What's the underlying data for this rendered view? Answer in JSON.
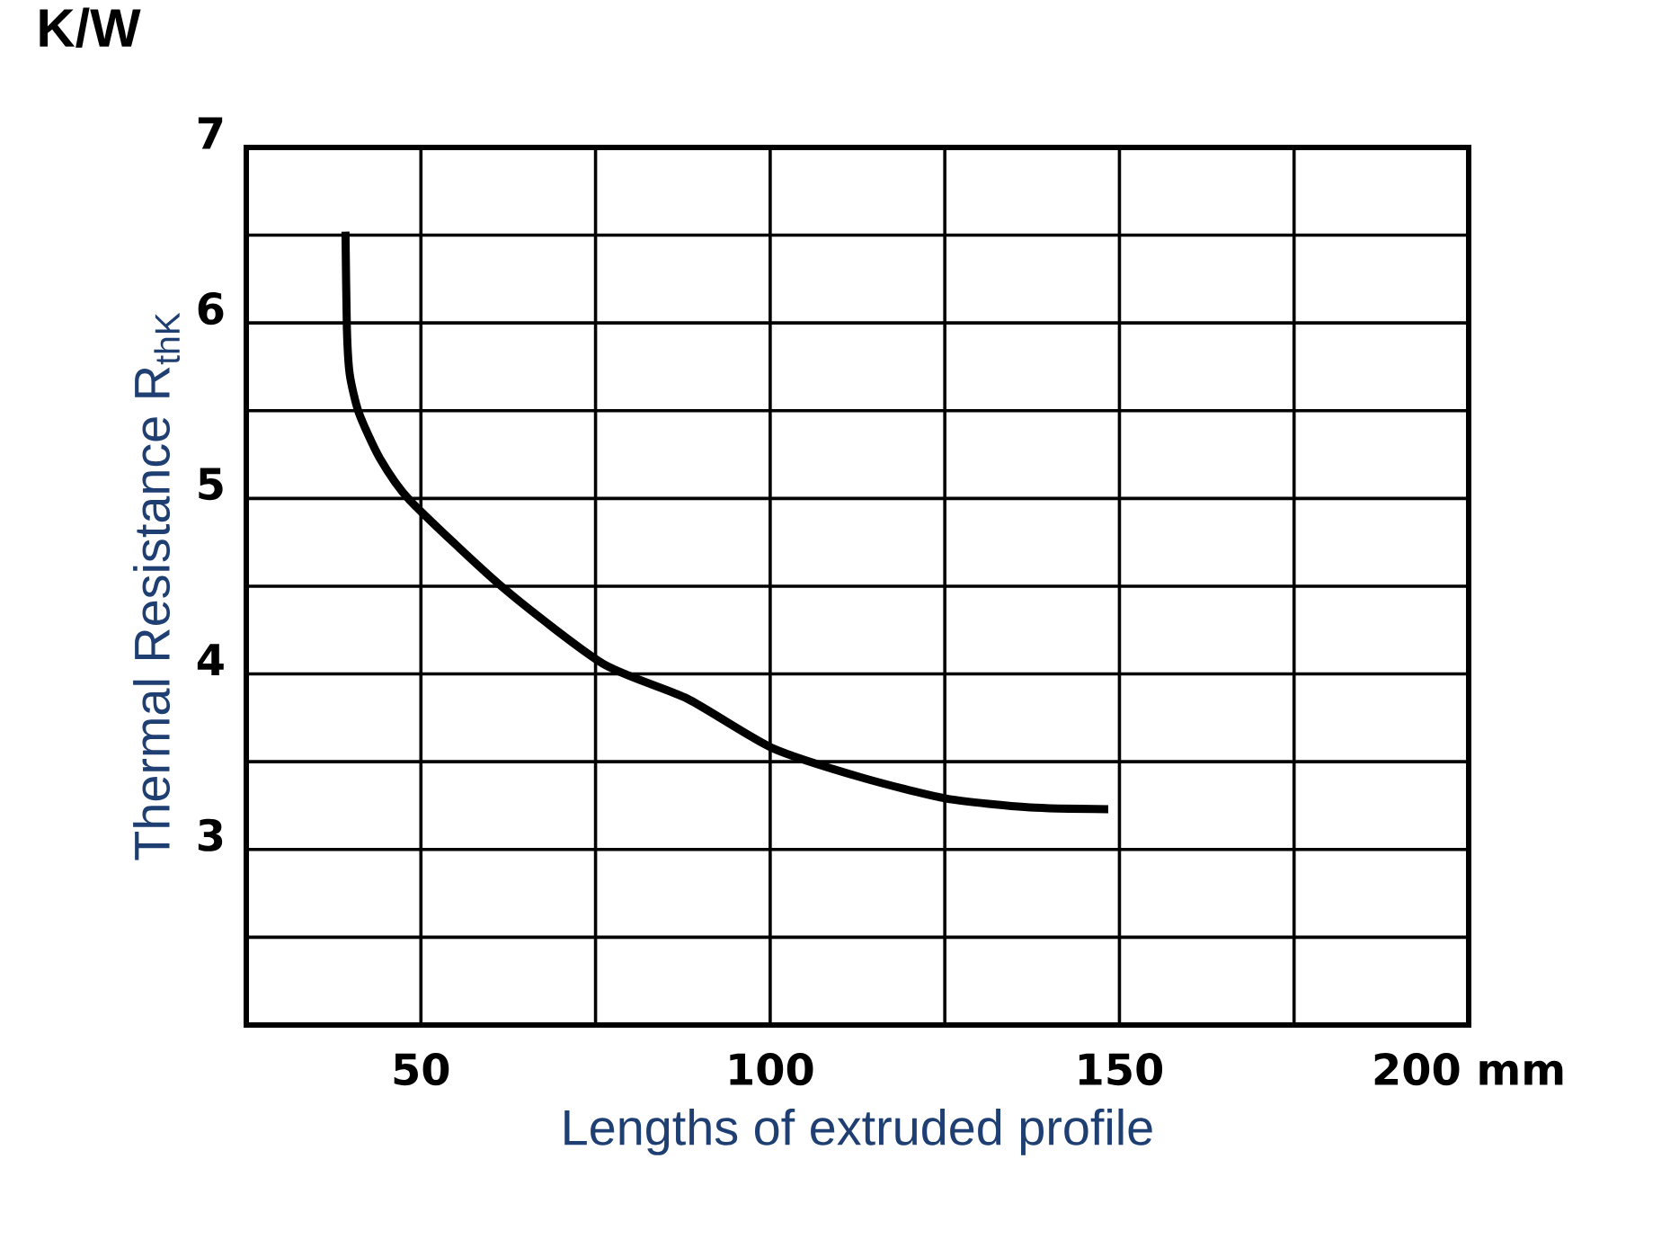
{
  "chart_data": {
    "type": "line",
    "xlabel": "Lengths of extruded profile",
    "ylabel": "Thermal Resistance R$_{thK}$",
    "annotations": [
      "K/W"
    ],
    "x": [
      39.2,
      39.4,
      39.8,
      41.1,
      44.1,
      48.4,
      61.8,
      76.0,
      88.1,
      100.2,
      113.1,
      125.2,
      137.2,
      148.4
    ],
    "series": [
      {
        "color": "#000000",
        "values": [
          6.52,
          5.97,
          5.71,
          5.49,
          5.23,
          4.99,
          4.49,
          4.06,
          3.86,
          3.58,
          3.41,
          3.29,
          3.24,
          3.23
        ]
      }
    ],
    "xlim": [
      25,
      200
    ],
    "ylim": [
      2,
      7
    ],
    "xticks": [
      {
        "value": 25,
        "label": null
      },
      50,
      {
        "value": 75,
        "label": null
      },
      100,
      {
        "value": 125,
        "label": null
      },
      150,
      {
        "value": 175,
        "label": null
      },
      {
        "value": 200,
        "label": "200 mm"
      }
    ],
    "yticks": [
      {
        "value": 2,
        "label": null
      },
      {
        "value": 2.5,
        "label": null
      },
      3,
      {
        "value": 3.5,
        "label": null
      },
      4,
      {
        "value": 4.5,
        "label": null
      },
      5,
      {
        "value": 5.5,
        "label": null
      },
      6,
      {
        "value": 6.5,
        "label": null
      },
      7
    ],
    "grid": true,
    "marker": "none",
    "line_style": "solid"
  }
}
